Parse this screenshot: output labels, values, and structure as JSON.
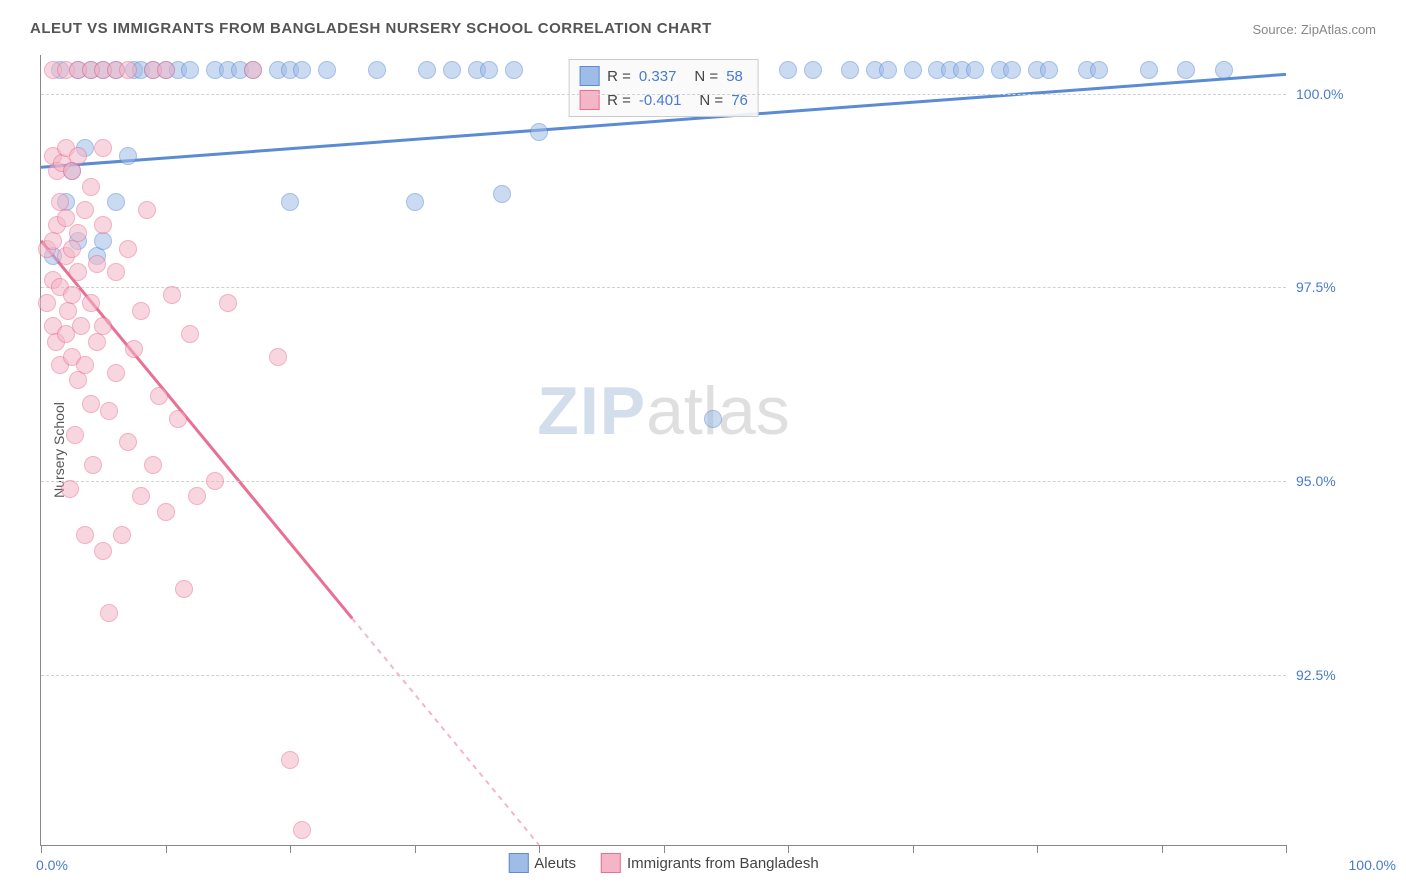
{
  "title": "ALEUT VS IMMIGRANTS FROM BANGLADESH NURSERY SCHOOL CORRELATION CHART",
  "source_label": "Source: ZipAtlas.com",
  "ylabel": "Nursery School",
  "watermark": {
    "part1": "ZIP",
    "part2": "atlas"
  },
  "chart": {
    "type": "scatter",
    "background_color": "#ffffff",
    "grid_color": "#d0d0d0",
    "axis_color": "#888888",
    "point_radius": 9,
    "point_opacity": 0.55,
    "xlim": [
      0,
      100
    ],
    "ylim": [
      90.3,
      100.5
    ],
    "yticks": [
      {
        "v": 100.0,
        "label": "100.0%"
      },
      {
        "v": 97.5,
        "label": "97.5%"
      },
      {
        "v": 95.0,
        "label": "95.0%"
      },
      {
        "v": 92.5,
        "label": "92.5%"
      }
    ],
    "xticks_minor": [
      0,
      10,
      20,
      30,
      40,
      50,
      60,
      70,
      80,
      90,
      100
    ],
    "xaxis_label_left": "0.0%",
    "xaxis_label_right": "100.0%",
    "axis_label_color": "#4a7bc8",
    "series": [
      {
        "name": "Aleuts",
        "color_fill": "#9fbce6",
        "color_stroke": "#5a8bd4",
        "r_value": "0.337",
        "n_value": "58",
        "trend": {
          "x1": 0,
          "y1": 99.05,
          "x2": 100,
          "y2": 100.25,
          "dash_after_x": null
        },
        "points": [
          [
            1,
            97.9
          ],
          [
            1.5,
            100.3
          ],
          [
            2,
            98.6
          ],
          [
            2.5,
            99.0
          ],
          [
            3,
            98.1
          ],
          [
            3,
            100.3
          ],
          [
            3.5,
            99.3
          ],
          [
            4,
            100.3
          ],
          [
            4.5,
            97.9
          ],
          [
            5,
            98.1
          ],
          [
            5,
            100.3
          ],
          [
            6,
            98.6
          ],
          [
            6,
            100.3
          ],
          [
            7,
            99.2
          ],
          [
            7.5,
            100.3
          ],
          [
            8,
            100.3
          ],
          [
            9,
            100.3
          ],
          [
            10,
            100.3
          ],
          [
            11,
            100.3
          ],
          [
            12,
            100.3
          ],
          [
            14,
            100.3
          ],
          [
            15,
            100.3
          ],
          [
            16,
            100.3
          ],
          [
            17,
            100.3
          ],
          [
            19,
            100.3
          ],
          [
            20,
            98.6
          ],
          [
            20,
            100.3
          ],
          [
            21,
            100.3
          ],
          [
            23,
            100.3
          ],
          [
            27,
            100.3
          ],
          [
            30,
            98.6
          ],
          [
            31,
            100.3
          ],
          [
            33,
            100.3
          ],
          [
            35,
            100.3
          ],
          [
            36,
            100.3
          ],
          [
            37,
            98.7
          ],
          [
            38,
            100.3
          ],
          [
            40,
            99.5
          ],
          [
            54,
            95.8
          ],
          [
            60,
            100.3
          ],
          [
            62,
            100.3
          ],
          [
            65,
            100.3
          ],
          [
            67,
            100.3
          ],
          [
            68,
            100.3
          ],
          [
            70,
            100.3
          ],
          [
            72,
            100.3
          ],
          [
            73,
            100.3
          ],
          [
            74,
            100.3
          ],
          [
            75,
            100.3
          ],
          [
            77,
            100.3
          ],
          [
            78,
            100.3
          ],
          [
            80,
            100.3
          ],
          [
            81,
            100.3
          ],
          [
            84,
            100.3
          ],
          [
            85,
            100.3
          ],
          [
            89,
            100.3
          ],
          [
            92,
            100.3
          ],
          [
            95,
            100.3
          ]
        ]
      },
      {
        "name": "Immigrants from Bangladesh",
        "color_fill": "#f4b6c6",
        "color_stroke": "#e96f95",
        "r_value": "-0.401",
        "n_value": "76",
        "trend": {
          "x1": 0,
          "y1": 98.1,
          "x2": 40,
          "y2": 90.3,
          "dash_after_x": 25
        },
        "points": [
          [
            0.5,
            98.0
          ],
          [
            0.5,
            97.3
          ],
          [
            1,
            98.1
          ],
          [
            1,
            97.6
          ],
          [
            1,
            97.0
          ],
          [
            1,
            99.2
          ],
          [
            1,
            100.3
          ],
          [
            1.2,
            96.8
          ],
          [
            1.3,
            98.3
          ],
          [
            1.3,
            99.0
          ],
          [
            1.5,
            97.5
          ],
          [
            1.5,
            96.5
          ],
          [
            1.5,
            98.6
          ],
          [
            1.7,
            99.1
          ],
          [
            2,
            97.9
          ],
          [
            2,
            98.4
          ],
          [
            2,
            96.9
          ],
          [
            2,
            99.3
          ],
          [
            2,
            100.3
          ],
          [
            2.2,
            97.2
          ],
          [
            2.3,
            94.9
          ],
          [
            2.5,
            98.0
          ],
          [
            2.5,
            97.4
          ],
          [
            2.5,
            96.6
          ],
          [
            2.5,
            99.0
          ],
          [
            2.7,
            95.6
          ],
          [
            3,
            97.7
          ],
          [
            3,
            98.2
          ],
          [
            3,
            96.3
          ],
          [
            3,
            99.2
          ],
          [
            3,
            100.3
          ],
          [
            3.2,
            97.0
          ],
          [
            3.5,
            96.5
          ],
          [
            3.5,
            98.5
          ],
          [
            3.5,
            94.3
          ],
          [
            4,
            97.3
          ],
          [
            4,
            96.0
          ],
          [
            4,
            98.8
          ],
          [
            4,
            100.3
          ],
          [
            4.2,
            95.2
          ],
          [
            4.5,
            96.8
          ],
          [
            4.5,
            97.8
          ],
          [
            5,
            94.1
          ],
          [
            5,
            97.0
          ],
          [
            5,
            98.3
          ],
          [
            5,
            99.3
          ],
          [
            5,
            100.3
          ],
          [
            5.5,
            95.9
          ],
          [
            5.5,
            93.3
          ],
          [
            6,
            96.4
          ],
          [
            6,
            97.7
          ],
          [
            6,
            100.3
          ],
          [
            6.5,
            94.3
          ],
          [
            7,
            95.5
          ],
          [
            7,
            98.0
          ],
          [
            7,
            100.3
          ],
          [
            7.5,
            96.7
          ],
          [
            8,
            94.8
          ],
          [
            8,
            97.2
          ],
          [
            8.5,
            98.5
          ],
          [
            9,
            95.2
          ],
          [
            9,
            100.3
          ],
          [
            9.5,
            96.1
          ],
          [
            10,
            94.6
          ],
          [
            10,
            100.3
          ],
          [
            10.5,
            97.4
          ],
          [
            11,
            95.8
          ],
          [
            11.5,
            93.6
          ],
          [
            12,
            96.9
          ],
          [
            12.5,
            94.8
          ],
          [
            14,
            95.0
          ],
          [
            15,
            97.3
          ],
          [
            17,
            100.3
          ],
          [
            19,
            96.6
          ],
          [
            20,
            91.4
          ],
          [
            21,
            90.5
          ]
        ]
      }
    ]
  },
  "legend_bottom": [
    {
      "label": "Aleuts",
      "fill": "#9fbce6",
      "stroke": "#5a8bd4"
    },
    {
      "label": "Immigrants from Bangladesh",
      "fill": "#f4b6c6",
      "stroke": "#e96f95"
    }
  ]
}
